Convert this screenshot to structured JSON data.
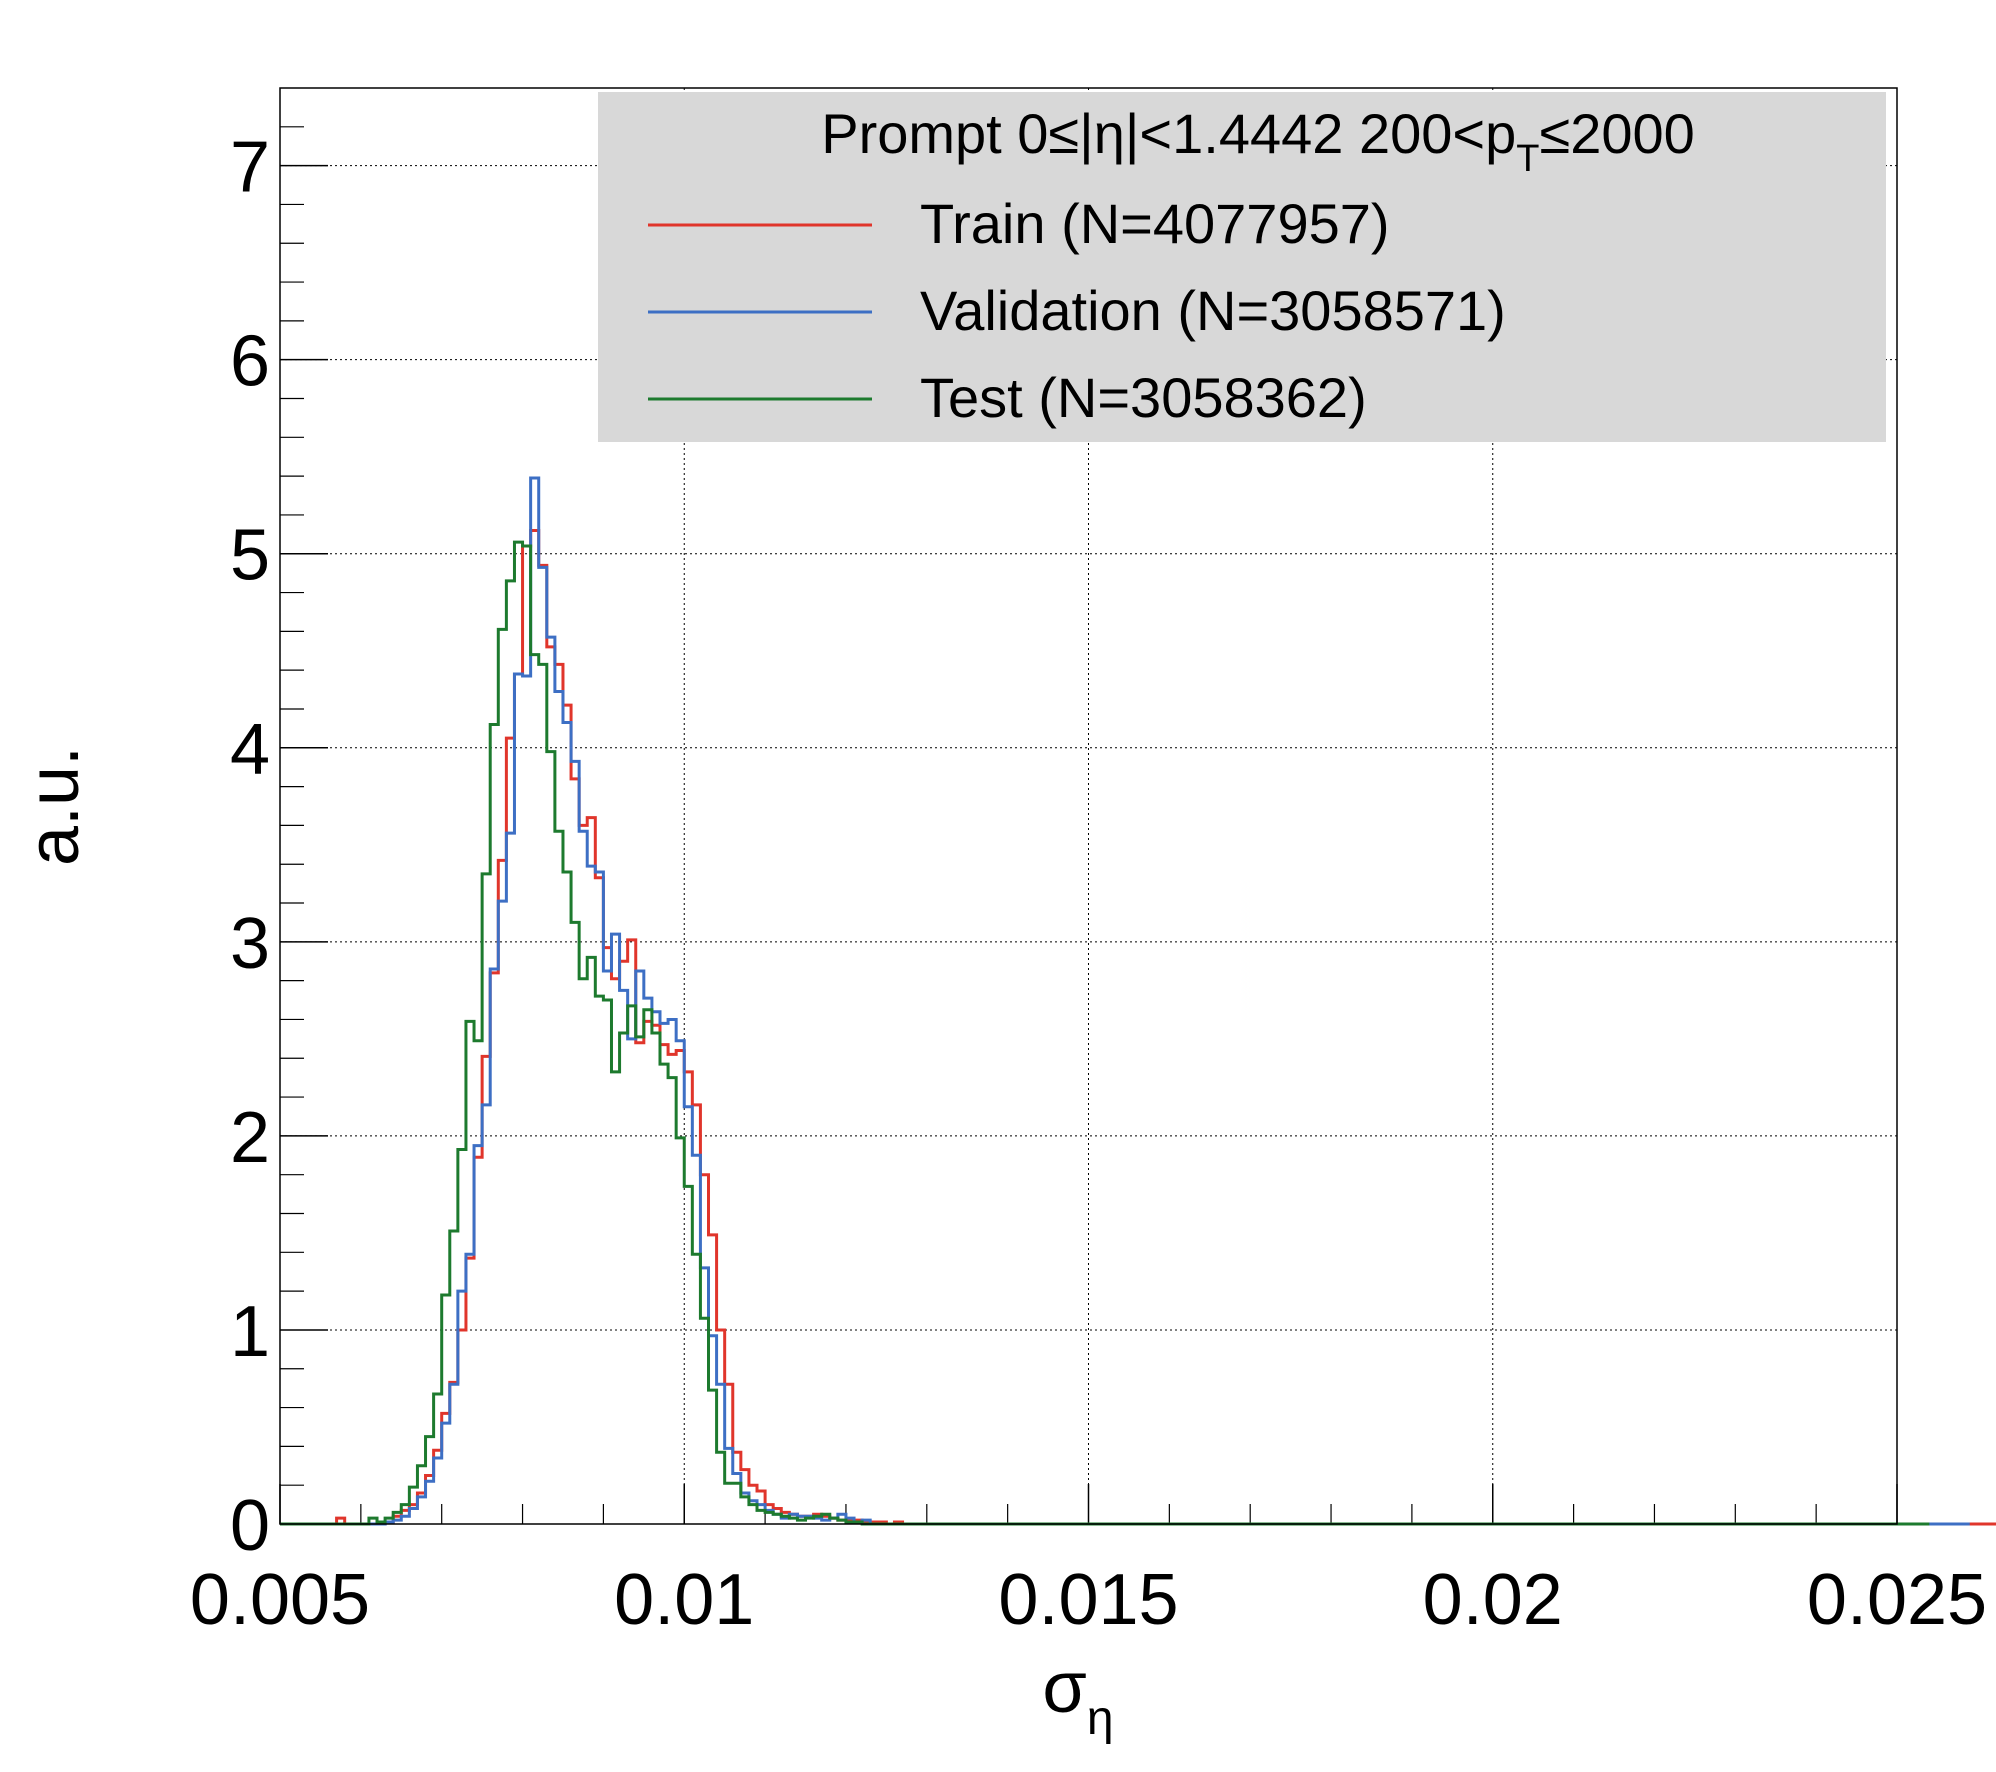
{
  "chart_data": {
    "type": "histogram",
    "title": "",
    "xlabel": "σ",
    "xlabel_subscript": "η",
    "ylabel": "a.u.",
    "xlim": [
      0.005,
      0.025
    ],
    "ylim": [
      0,
      7.4
    ],
    "grid": true,
    "legend_placement": "top-right",
    "x_ticks": [
      "0.005",
      "0.01",
      "0.015",
      "0.02",
      "0.025"
    ],
    "y_ticks": [
      "0",
      "1",
      "2",
      "3",
      "4",
      "5",
      "6",
      "7"
    ],
    "legend": {
      "header_main": "Prompt  0≤|η|<1.4442  200<p",
      "header_sub": "T",
      "header_tail": "≤2000",
      "entries": [
        {
          "label": "Train (N=4077957)",
          "color": "#e0352b"
        },
        {
          "label": "Validation (N=3058571)",
          "color": "#3d6fc4"
        },
        {
          "label": "Test (N=3058362)",
          "color": "#1d7a2e"
        }
      ]
    },
    "bin_width": 0.0001,
    "x_start": 0.005,
    "series": [
      {
        "name": "Train (N=4077957)",
        "color": "#e0352b",
        "values": [
          0,
          0,
          0,
          0,
          0,
          0,
          0,
          0.03,
          0,
          0,
          0,
          0,
          0,
          0.01,
          0.04,
          0.07,
          0.1,
          0.16,
          0.25,
          0.38,
          0.57,
          0.73,
          1.0,
          1.37,
          1.89,
          2.41,
          2.84,
          3.42,
          4.05,
          4.38,
          5.04,
          5.12,
          4.94,
          4.52,
          4.43,
          4.22,
          3.84,
          3.6,
          3.64,
          3.33,
          2.97,
          2.81,
          2.9,
          3.01,
          2.48,
          2.59,
          2.57,
          2.47,
          2.42,
          2.44,
          2.33,
          2.16,
          1.8,
          1.49,
          1.0,
          0.72,
          0.37,
          0.28,
          0.2,
          0.17,
          0.1,
          0.08,
          0.06,
          0.05,
          0.04,
          0.04,
          0.05,
          0.04,
          0.03,
          0.02,
          0.02,
          0.02,
          0.01,
          0.01,
          0.01,
          0,
          0.01,
          0,
          0,
          0,
          0,
          0,
          0,
          0,
          0,
          0,
          0,
          0,
          0,
          0,
          0,
          0,
          0,
          0,
          0,
          0,
          0,
          0,
          0,
          0,
          0,
          0,
          0,
          0,
          0,
          0,
          0,
          0,
          0,
          0,
          0,
          0,
          0,
          0,
          0,
          0,
          0,
          0,
          0,
          0,
          0,
          0,
          0,
          0,
          0,
          0,
          0,
          0,
          0,
          0,
          0,
          0,
          0,
          0,
          0,
          0,
          0,
          0,
          0,
          0,
          0,
          0,
          0,
          0,
          0,
          0,
          0,
          0,
          0,
          0,
          0,
          0,
          0,
          0,
          0,
          0,
          0,
          0,
          0,
          0,
          0,
          0,
          0,
          0,
          0,
          0,
          0,
          0,
          0,
          0,
          0,
          0,
          0,
          0,
          0,
          0,
          0,
          0,
          0,
          0,
          0,
          0,
          0,
          0,
          0,
          0,
          0,
          0,
          0,
          0,
          0,
          0,
          0,
          0,
          0,
          0,
          0,
          0,
          0,
          0,
          0,
          0,
          0,
          0,
          0,
          0,
          0,
          0,
          0,
          0,
          0,
          0,
          0
        ]
      },
      {
        "name": "Validation (N=3058571)",
        "color": "#3d6fc4",
        "values": [
          0,
          0,
          0,
          0,
          0,
          0,
          0,
          0,
          0,
          0,
          0,
          0,
          0,
          0.01,
          0.02,
          0.04,
          0.08,
          0.14,
          0.22,
          0.34,
          0.52,
          0.72,
          1.2,
          1.39,
          1.95,
          2.16,
          2.86,
          3.21,
          3.56,
          4.38,
          4.37,
          5.39,
          4.93,
          4.57,
          4.29,
          4.13,
          3.93,
          3.57,
          3.39,
          3.36,
          2.85,
          3.04,
          2.75,
          2.5,
          2.85,
          2.71,
          2.64,
          2.58,
          2.6,
          2.49,
          2.15,
          1.9,
          1.32,
          0.97,
          0.72,
          0.39,
          0.26,
          0.16,
          0.12,
          0.1,
          0.07,
          0.05,
          0.03,
          0.05,
          0.04,
          0.04,
          0.03,
          0.02,
          0.03,
          0.05,
          0.03,
          0.01,
          0.02,
          0,
          0,
          0,
          0,
          0,
          0,
          0,
          0,
          0,
          0,
          0,
          0,
          0,
          0,
          0,
          0,
          0,
          0,
          0,
          0,
          0,
          0,
          0,
          0,
          0,
          0,
          0,
          0,
          0,
          0,
          0,
          0,
          0,
          0,
          0,
          0,
          0,
          0,
          0,
          0,
          0,
          0,
          0,
          0,
          0,
          0,
          0,
          0,
          0,
          0,
          0,
          0,
          0,
          0,
          0,
          0,
          0,
          0,
          0,
          0,
          0,
          0,
          0,
          0,
          0,
          0,
          0,
          0,
          0,
          0,
          0,
          0,
          0,
          0,
          0,
          0,
          0,
          0,
          0,
          0,
          0,
          0,
          0,
          0,
          0,
          0,
          0,
          0,
          0,
          0,
          0,
          0,
          0,
          0,
          0,
          0,
          0,
          0,
          0,
          0,
          0,
          0,
          0,
          0,
          0,
          0,
          0,
          0,
          0,
          0,
          0,
          0,
          0,
          0,
          0,
          0,
          0,
          0,
          0,
          0,
          0,
          0,
          0,
          0,
          0,
          0,
          0,
          0,
          0,
          0,
          0,
          0,
          0,
          0,
          0,
          0
        ]
      },
      {
        "name": "Test (N=3058362)",
        "color": "#1d7a2e",
        "values": [
          0,
          0,
          0,
          0,
          0,
          0,
          0,
          0,
          0,
          0,
          0,
          0.03,
          0.01,
          0.03,
          0.06,
          0.1,
          0.19,
          0.3,
          0.45,
          0.67,
          1.18,
          1.51,
          1.93,
          2.59,
          2.49,
          3.35,
          4.12,
          4.61,
          4.86,
          5.06,
          5.04,
          4.48,
          4.43,
          3.98,
          3.57,
          3.36,
          3.1,
          2.81,
          2.92,
          2.72,
          2.7,
          2.33,
          2.53,
          2.67,
          2.51,
          2.65,
          2.53,
          2.37,
          2.3,
          1.99,
          1.74,
          1.39,
          1.06,
          0.69,
          0.37,
          0.21,
          0.21,
          0.14,
          0.1,
          0.07,
          0.06,
          0.05,
          0.04,
          0.03,
          0.02,
          0.03,
          0.04,
          0.05,
          0.03,
          0.02,
          0.01,
          0.01,
          0,
          0,
          0,
          0,
          0,
          0,
          0,
          0,
          0,
          0,
          0,
          0,
          0,
          0,
          0,
          0,
          0,
          0,
          0,
          0,
          0,
          0,
          0,
          0,
          0,
          0,
          0,
          0,
          0,
          0,
          0,
          0,
          0,
          0,
          0,
          0,
          0,
          0,
          0,
          0,
          0,
          0,
          0,
          0,
          0,
          0,
          0,
          0,
          0,
          0,
          0,
          0,
          0,
          0,
          0,
          0,
          0,
          0,
          0,
          0,
          0,
          0,
          0,
          0,
          0,
          0,
          0,
          0,
          0,
          0,
          0,
          0,
          0,
          0,
          0,
          0,
          0,
          0,
          0,
          0,
          0,
          0,
          0,
          0,
          0,
          0,
          0,
          0,
          0,
          0,
          0,
          0,
          0,
          0,
          0,
          0,
          0,
          0,
          0,
          0,
          0,
          0,
          0,
          0,
          0,
          0,
          0,
          0,
          0,
          0,
          0,
          0,
          0,
          0,
          0,
          0,
          0,
          0,
          0,
          0,
          0,
          0,
          0,
          0,
          0,
          0,
          0,
          0,
          0,
          0,
          0,
          0
        ]
      }
    ]
  }
}
